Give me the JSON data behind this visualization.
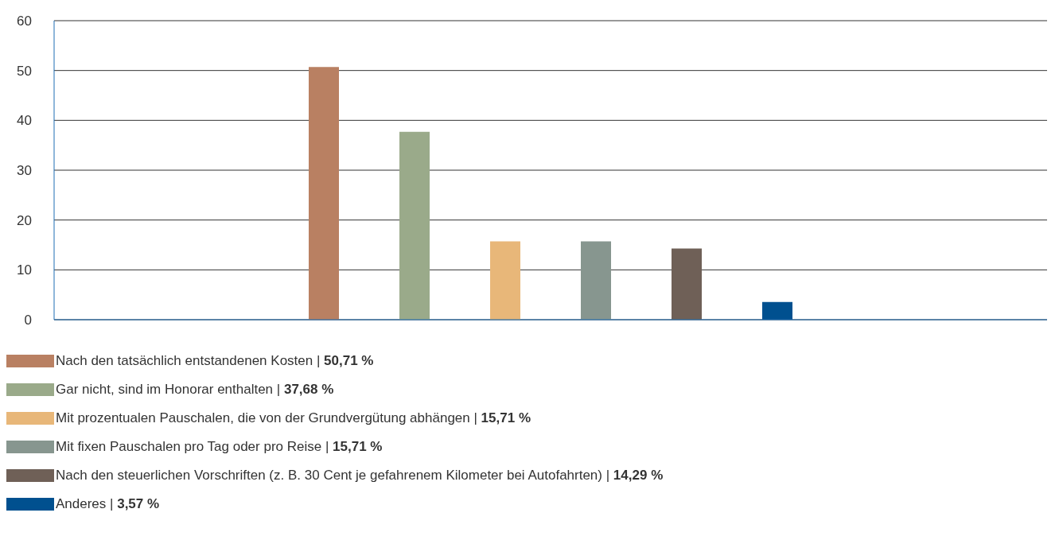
{
  "chart_data": {
    "type": "bar",
    "categories": [
      null
    ],
    "series": [
      {
        "name": "Nach den tatsächlich entstandenen Kosten | 50,71 %",
        "color": "#b98062",
        "values": [
          50.71
        ]
      },
      {
        "name": "Gar nicht, sind im Honorar enthalten | 37,68 %",
        "color": "#9aaa8a",
        "values": [
          37.68
        ]
      },
      {
        "name": "Mit prozentualen Pauschalen, die von der Grundvergütung abhängen | 15,71 %",
        "color": "#e8b779",
        "values": [
          15.71
        ]
      },
      {
        "name": "Mit fixen Pauschalen pro Tag oder pro Reise | 15,71 %",
        "color": "#87968f",
        "values": [
          15.71
        ]
      },
      {
        "name": "Nach den steuerlichen Vorschriften (z. B. 30 Cent je gefahrenem Kilometer bei Autofahrten) | 14,29 %",
        "color": "#6f6057",
        "values": [
          14.29
        ]
      },
      {
        "name": "Anderes | 3,57 %",
        "color": "#00508f",
        "values": [
          3.57
        ]
      }
    ],
    "ylim": [
      0,
      60
    ],
    "yticks": [
      0,
      10,
      20,
      30,
      40,
      50,
      60
    ],
    "grid": "y",
    "legend": "bottom"
  }
}
